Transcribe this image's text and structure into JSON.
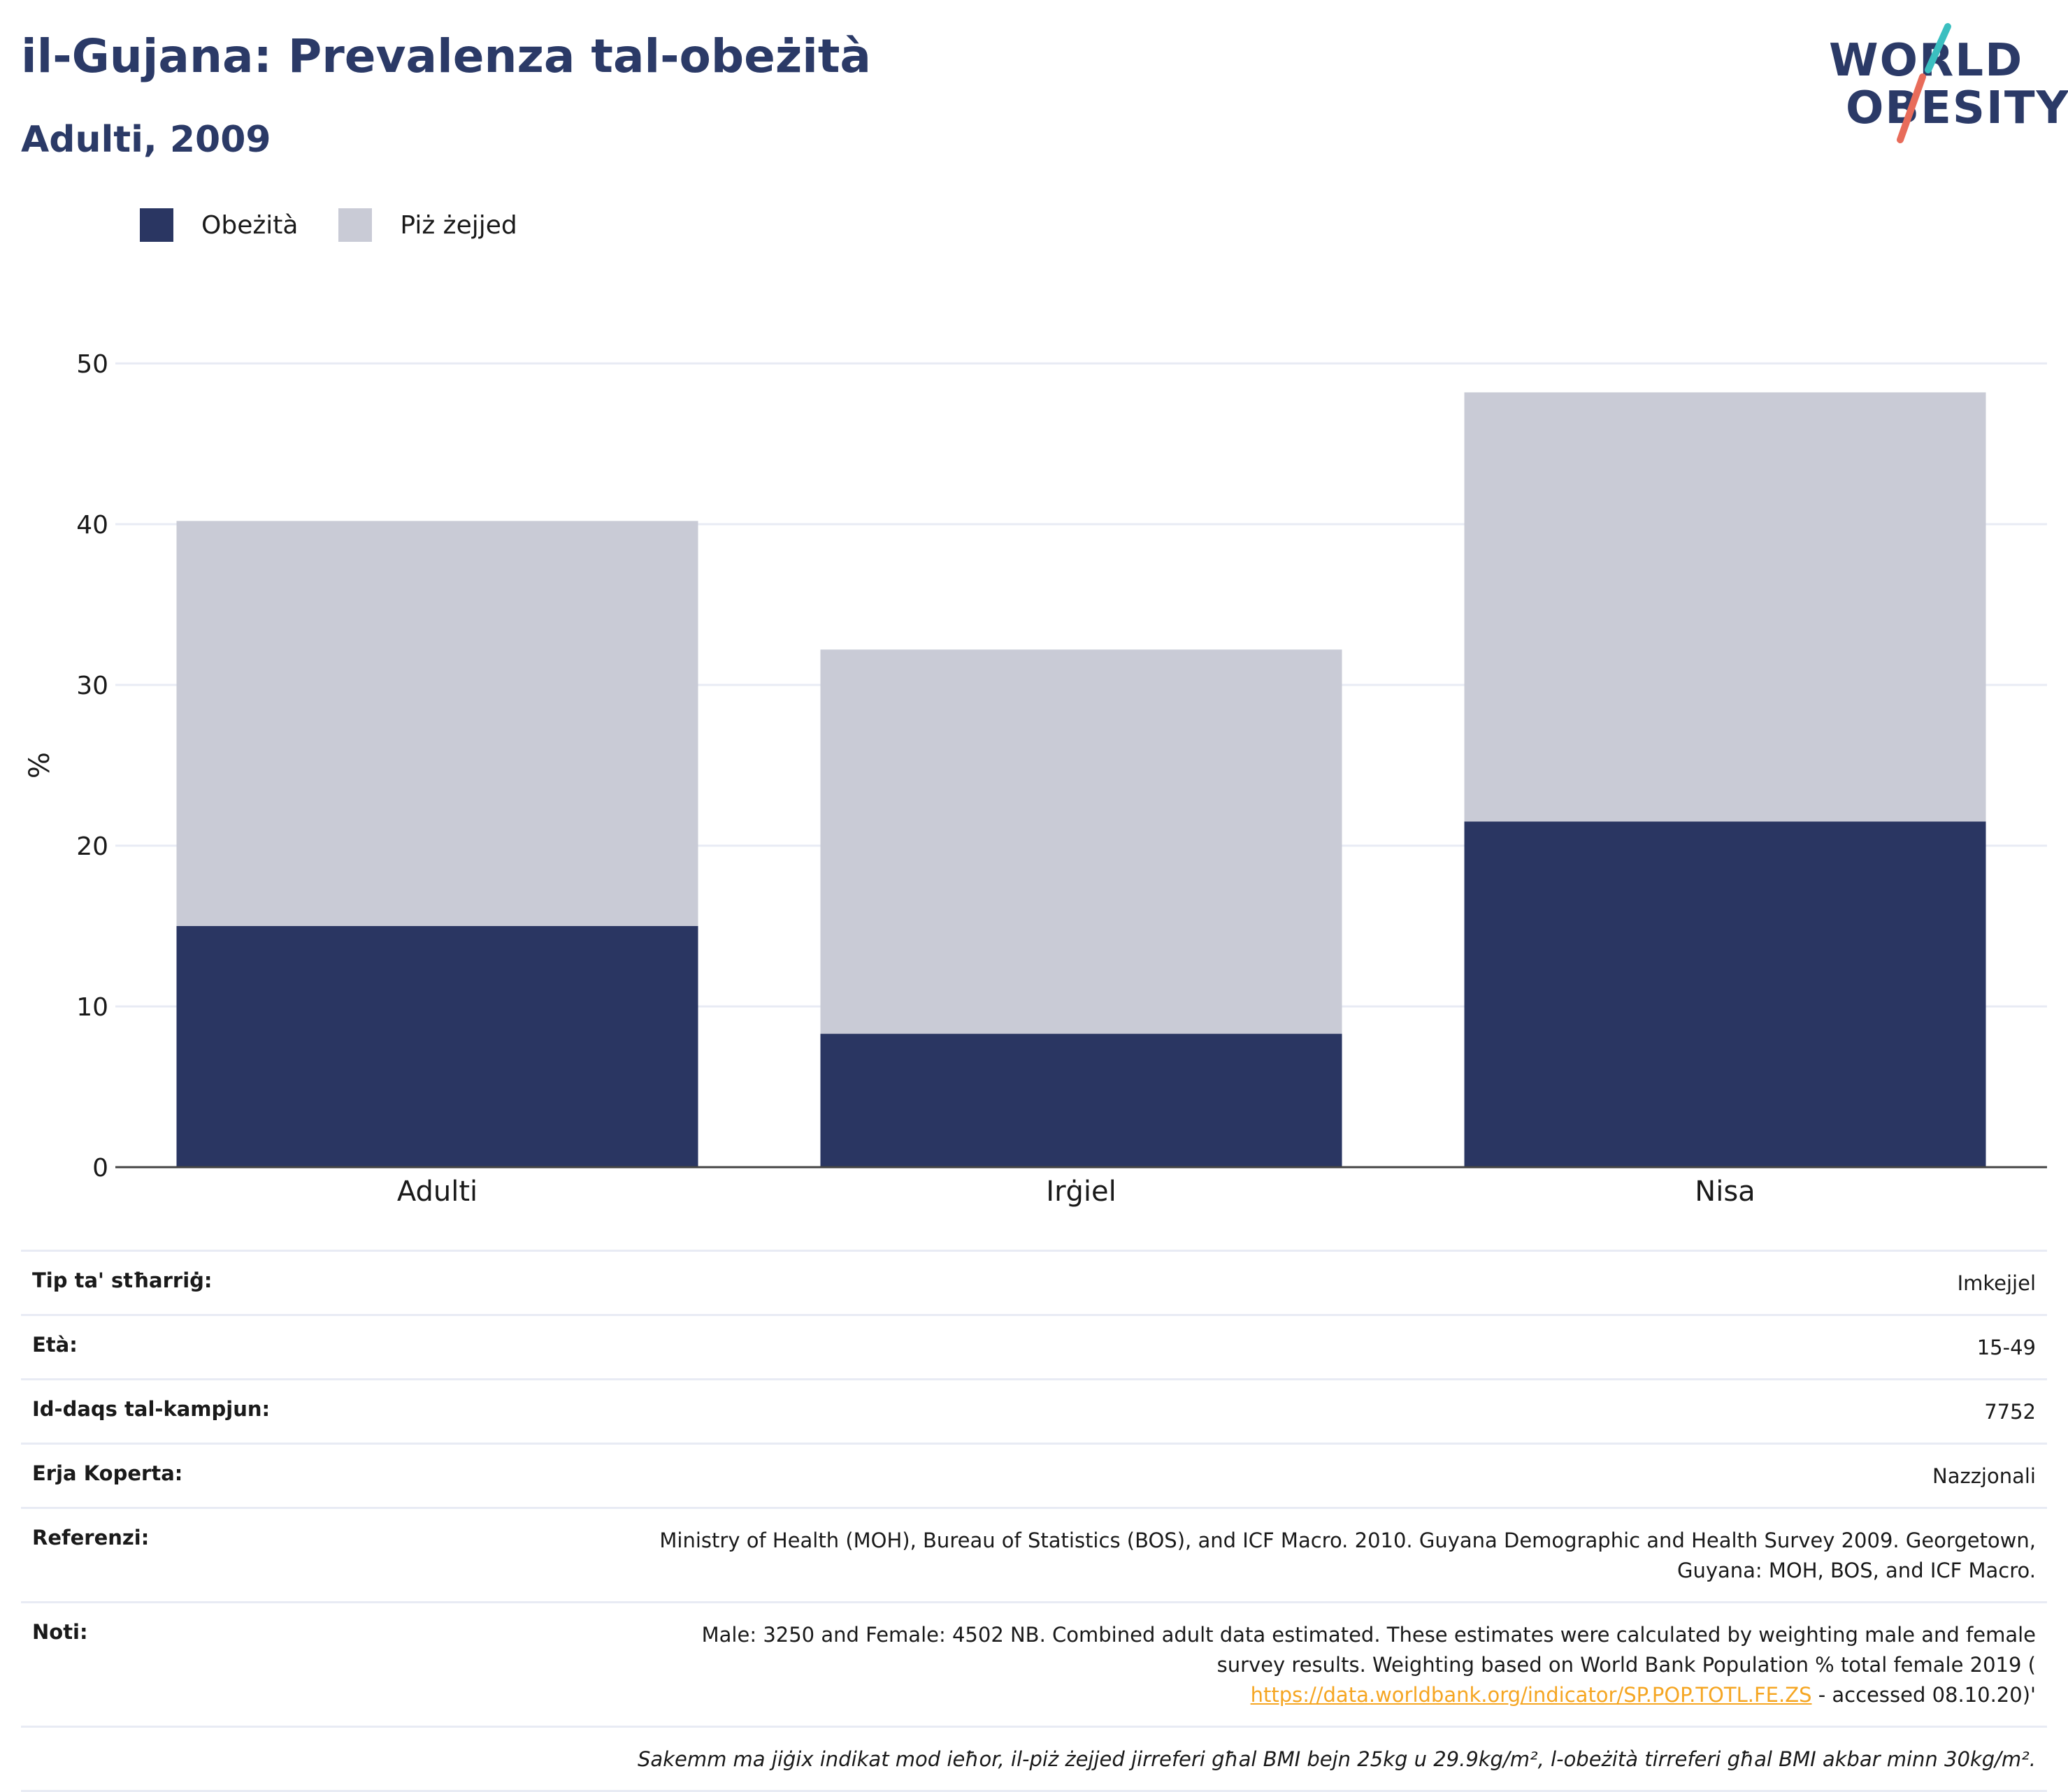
{
  "header": {
    "title": "il-Gujana: Prevalenza tal-obeżità",
    "subtitle": "Adulti, 2009"
  },
  "logo": {
    "line1": "WORLD",
    "line2": "OBESITY"
  },
  "legend": [
    {
      "label": "Obeżità",
      "color": "#2a3662"
    },
    {
      "label": "Piż żejjed",
      "color": "#c9cbd6"
    }
  ],
  "chart_data": {
    "type": "bar",
    "stacked": true,
    "categories": [
      "Adulti",
      "Irġiel",
      "Nisa"
    ],
    "series": [
      {
        "name": "Obeżità",
        "values": [
          15.0,
          8.3,
          21.5
        ],
        "color": "#2a3662"
      },
      {
        "name": "Piż żejjed",
        "values": [
          25.2,
          23.9,
          26.7
        ],
        "color": "#c9cbd6"
      }
    ],
    "ylabel": "%",
    "ylim": [
      0,
      50
    ],
    "yticks": [
      0,
      10,
      20,
      30,
      40,
      50
    ],
    "grid": true,
    "legend_position": "top-left"
  },
  "info": {
    "rows": [
      {
        "key": "Tip ta' stħarriġ:",
        "value": "Imkejjel"
      },
      {
        "key": "Età:",
        "value": "15-49"
      },
      {
        "key": "Id-daqs tal-kampjun:",
        "value": "7752"
      },
      {
        "key": "Erja Koperta:",
        "value": "Nazzjonali"
      },
      {
        "key": "Referenzi:",
        "value_line1": "Ministry of Health (MOH), Bureau of Statistics (BOS), and ICF Macro. 2010. Guyana Demographic and Health Survey 2009. Georgetown,",
        "value_line2": "Guyana: MOH, BOS, and ICF Macro."
      }
    ],
    "notes": {
      "key": "Noti:",
      "line1": "Male: 3250 and Female: 4502 NB. Combined adult data estimated. These estimates were calculated by weighting male and female",
      "line2": "survey results. Weighting based on World Bank Population % total female 2019 (",
      "link": "https://data.worldbank.org/indicator/SP.POP.TOTL.FE.ZS",
      "after_link": " - accessed 08.10.20)'"
    },
    "footnote": "Sakemm ma jiġix indikat mod ieħor, il-piż żejjed jirreferi għal BMI bejn 25kg u 29.9kg/m², l-obeżità tirreferi għal BMI akbar minn 30kg/m²."
  },
  "colors": {
    "title": "#2b3a67",
    "logo_teal": "#3bbfc0",
    "logo_coral": "#e86c5a",
    "link": "#f5a623"
  }
}
